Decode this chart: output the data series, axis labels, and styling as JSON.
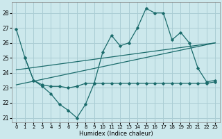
{
  "title": "",
  "xlabel": "Humidex (Indice chaleur)",
  "bg_color": "#cce8ec",
  "grid_color": "#aacdd4",
  "line_color": "#1a6b6b",
  "xlim": [
    -0.5,
    23.5
  ],
  "ylim": [
    20.7,
    28.7
  ],
  "xticks": [
    0,
    1,
    2,
    3,
    4,
    5,
    6,
    7,
    8,
    9,
    10,
    11,
    12,
    13,
    14,
    15,
    16,
    17,
    18,
    19,
    20,
    21,
    22,
    23
  ],
  "yticks": [
    21,
    22,
    23,
    24,
    25,
    26,
    27,
    28
  ],
  "series1_x": [
    0,
    1,
    2,
    3,
    4,
    5,
    6,
    7,
    8,
    9,
    10,
    11,
    12,
    13,
    14,
    15,
    16,
    17,
    18,
    19,
    20,
    21,
    22,
    23
  ],
  "series1_y": [
    26.9,
    25.0,
    23.5,
    23.1,
    22.6,
    21.9,
    21.5,
    21.0,
    21.9,
    23.3,
    25.4,
    26.5,
    25.8,
    26.0,
    27.0,
    28.3,
    28.0,
    28.0,
    26.2,
    26.7,
    26.0,
    24.3,
    23.4,
    23.5
  ],
  "series2_x": [
    1,
    2,
    3,
    4,
    5,
    6,
    7,
    8,
    9,
    10,
    11,
    12,
    13,
    14,
    15,
    16,
    17,
    18,
    19,
    20,
    21,
    22,
    23
  ],
  "series2_y": [
    25.0,
    23.5,
    23.2,
    23.1,
    23.1,
    23.0,
    23.1,
    23.3,
    23.3,
    23.3,
    23.3,
    23.3,
    23.3,
    23.3,
    23.3,
    23.3,
    23.3,
    23.3,
    23.3,
    23.3,
    23.3,
    23.3,
    23.4
  ],
  "series3_x": [
    0,
    23
  ],
  "series3_y": [
    23.2,
    26.0
  ],
  "series4_x": [
    0,
    23
  ],
  "series4_y": [
    24.2,
    26.0
  ]
}
